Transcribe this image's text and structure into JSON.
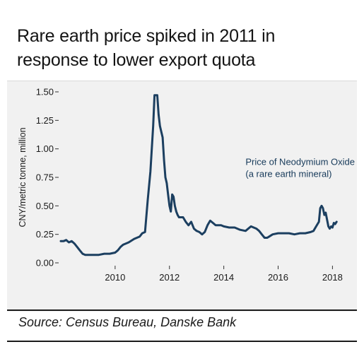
{
  "header": {
    "title_line1": "Rare earth price spiked in 2011  in",
    "title_line2": "response to lower export quota"
  },
  "footer": {
    "source": "Source: Census Bureau, Danske Bank"
  },
  "colors": {
    "line": "#1c3f60",
    "panel_background": "#f1f1f1"
  },
  "chart_data": {
    "type": "line",
    "title": "Rare earth price spiked in 2011  in response to lower export quota",
    "ylabel": "CNY/metric tonne, million",
    "xlabel": "",
    "xlim": [
      2008.0,
      2018.25
    ],
    "ylim": [
      0,
      1.5
    ],
    "yticks": [
      0,
      0.25,
      0.5,
      0.75,
      1.0,
      1.25,
      1.5
    ],
    "ytick_labels": [
      "0.00",
      "0.25",
      "0.50",
      "0.75",
      "1.00",
      "1.25",
      "1.50"
    ],
    "xticks": [
      2010,
      2012,
      2014,
      2016,
      2018
    ],
    "xtick_labels": [
      "2010",
      "2012",
      "2014",
      "2016",
      "2018"
    ],
    "grid": false,
    "legend": "none",
    "annotation": [
      "Price of Neodymium Oxide",
      "(a rare earth mineral)"
    ],
    "series": [
      {
        "name": "Price of Neodymium Oxide (a rare earth mineral)",
        "x": [
          2008.0,
          2008.1,
          2008.2,
          2008.3,
          2008.4,
          2008.5,
          2008.6,
          2008.7,
          2008.8,
          2008.9,
          2009.0,
          2009.2,
          2009.4,
          2009.6,
          2009.8,
          2010.0,
          2010.1,
          2010.2,
          2010.3,
          2010.5,
          2010.7,
          2010.9,
          2011.0,
          2011.1,
          2011.2,
          2011.3,
          2011.4,
          2011.45,
          2011.5,
          2011.55,
          2011.6,
          2011.65,
          2011.7,
          2011.75,
          2011.8,
          2011.85,
          2011.9,
          2011.95,
          2012.0,
          2012.05,
          2012.1,
          2012.15,
          2012.2,
          2012.25,
          2012.3,
          2012.35,
          2012.4,
          2012.5,
          2012.6,
          2012.7,
          2012.8,
          2012.9,
          2013.0,
          2013.1,
          2013.2,
          2013.3,
          2013.4,
          2013.5,
          2013.6,
          2013.7,
          2013.8,
          2013.9,
          2014.0,
          2014.2,
          2014.4,
          2014.6,
          2014.8,
          2015.0,
          2015.2,
          2015.3,
          2015.4,
          2015.5,
          2015.6,
          2015.8,
          2016.0,
          2016.2,
          2016.4,
          2016.6,
          2016.8,
          2017.0,
          2017.2,
          2017.3,
          2017.4,
          2017.5,
          2017.55,
          2017.6,
          2017.65,
          2017.7,
          2017.75,
          2017.8,
          2017.85,
          2017.9,
          2017.95,
          2018.0,
          2018.05,
          2018.1,
          2018.15
        ],
        "y": [
          0.19,
          0.19,
          0.2,
          0.18,
          0.19,
          0.17,
          0.14,
          0.11,
          0.08,
          0.07,
          0.07,
          0.07,
          0.07,
          0.08,
          0.08,
          0.09,
          0.11,
          0.14,
          0.16,
          0.18,
          0.21,
          0.23,
          0.26,
          0.27,
          0.55,
          0.8,
          1.2,
          1.47,
          1.47,
          1.47,
          1.3,
          1.2,
          1.15,
          1.1,
          0.9,
          0.75,
          0.7,
          0.6,
          0.5,
          0.45,
          0.6,
          0.58,
          0.5,
          0.45,
          0.42,
          0.4,
          0.4,
          0.4,
          0.36,
          0.33,
          0.36,
          0.3,
          0.28,
          0.27,
          0.25,
          0.27,
          0.33,
          0.37,
          0.35,
          0.33,
          0.33,
          0.33,
          0.32,
          0.31,
          0.31,
          0.29,
          0.28,
          0.32,
          0.3,
          0.28,
          0.25,
          0.22,
          0.22,
          0.25,
          0.26,
          0.26,
          0.26,
          0.25,
          0.26,
          0.26,
          0.27,
          0.28,
          0.32,
          0.36,
          0.48,
          0.5,
          0.48,
          0.42,
          0.44,
          0.38,
          0.32,
          0.3,
          0.32,
          0.31,
          0.35,
          0.34,
          0.36
        ]
      }
    ]
  }
}
